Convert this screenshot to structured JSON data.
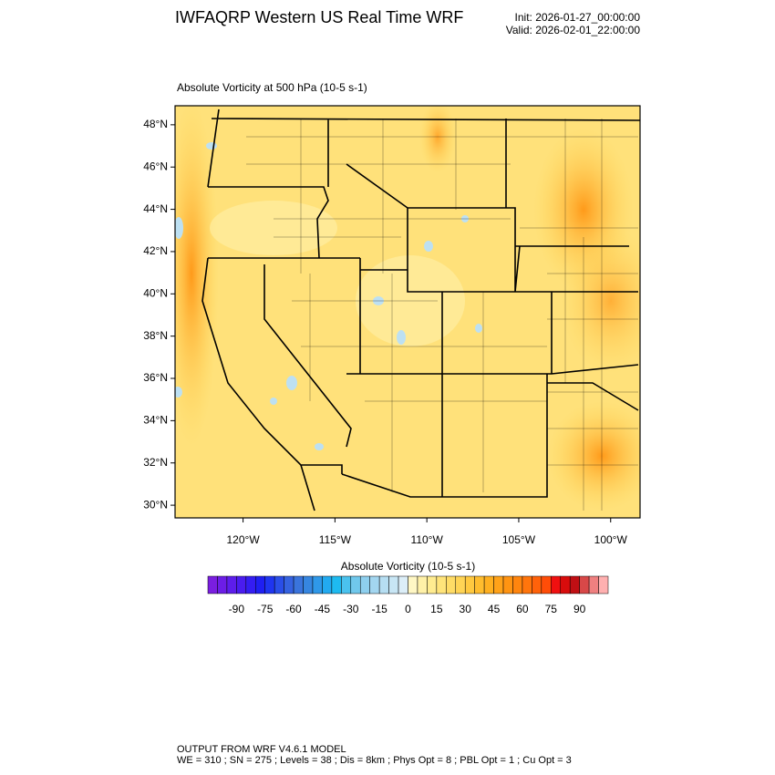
{
  "header": {
    "title": "IWFAQRP Western US Real Time WRF",
    "init": "Init: 2026-01-27_00:00:00",
    "valid": "Valid: 2026-02-01_22:00:00"
  },
  "map": {
    "subtitle": "Absolute Vorticity at 500 hPa   (10-5 s-1)",
    "lat_lim": [
      29.4,
      48.9
    ],
    "lon_lim": [
      -123.7,
      -98.4
    ],
    "lat_ticks": [
      {
        "value": 48,
        "label": "48°N"
      },
      {
        "value": 46,
        "label": "46°N"
      },
      {
        "value": 44,
        "label": "44°N"
      },
      {
        "value": 42,
        "label": "42°N"
      },
      {
        "value": 40,
        "label": "40°N"
      },
      {
        "value": 38,
        "label": "38°N"
      },
      {
        "value": 36,
        "label": "36°N"
      },
      {
        "value": 34,
        "label": "34°N"
      },
      {
        "value": 32,
        "label": "32°N"
      },
      {
        "value": 30,
        "label": "30°N"
      }
    ],
    "lon_ticks": [
      {
        "value": -120,
        "label": "120°W"
      },
      {
        "value": -115,
        "label": "115°W"
      },
      {
        "value": -110,
        "label": "110°W"
      },
      {
        "value": -105,
        "label": "105°W"
      },
      {
        "value": -100,
        "label": "100°W"
      }
    ]
  },
  "colorbar": {
    "title": "Absolute Vorticity  (10-5 s-1)",
    "lim": [
      -105,
      105
    ],
    "ticks": [
      -90,
      -75,
      -60,
      -45,
      -30,
      -15,
      0,
      15,
      30,
      45,
      60,
      75,
      90
    ],
    "colors": [
      "#7a1ee0",
      "#6c1de6",
      "#5d1deb",
      "#4a1cef",
      "#341df2",
      "#1f1ff2",
      "#1f35f0",
      "#2a4ee8",
      "#3562e0",
      "#3a74dc",
      "#3686e0",
      "#2f98e8",
      "#22aaf0",
      "#1ebaf0",
      "#4ac2ee",
      "#70c8ec",
      "#8ecfee",
      "#a3d6f0",
      "#b6def2",
      "#c8e6f5",
      "#dceef8",
      "#fff7c4",
      "#fff1a8",
      "#ffec90",
      "#ffe47a",
      "#ffdc66",
      "#ffd455",
      "#ffc940",
      "#ffbd2e",
      "#ffb020",
      "#ffa219",
      "#ff9412",
      "#ff850e",
      "#ff750c",
      "#ff620a",
      "#ff4d08",
      "#f01010",
      "#d80c0c",
      "#c00f14",
      "#d84848",
      "#ef8080",
      "#ffb0b0"
    ]
  },
  "footer": {
    "lines": [
      "OUTPUT FROM WRF V4.6.1 MODEL",
      "WE = 310 ; SN = 275 ; Levels = 38 ; Dis = 8km ; Phys Opt = 8 ; PBL Opt = 1 ; Cu Opt = 3"
    ]
  }
}
